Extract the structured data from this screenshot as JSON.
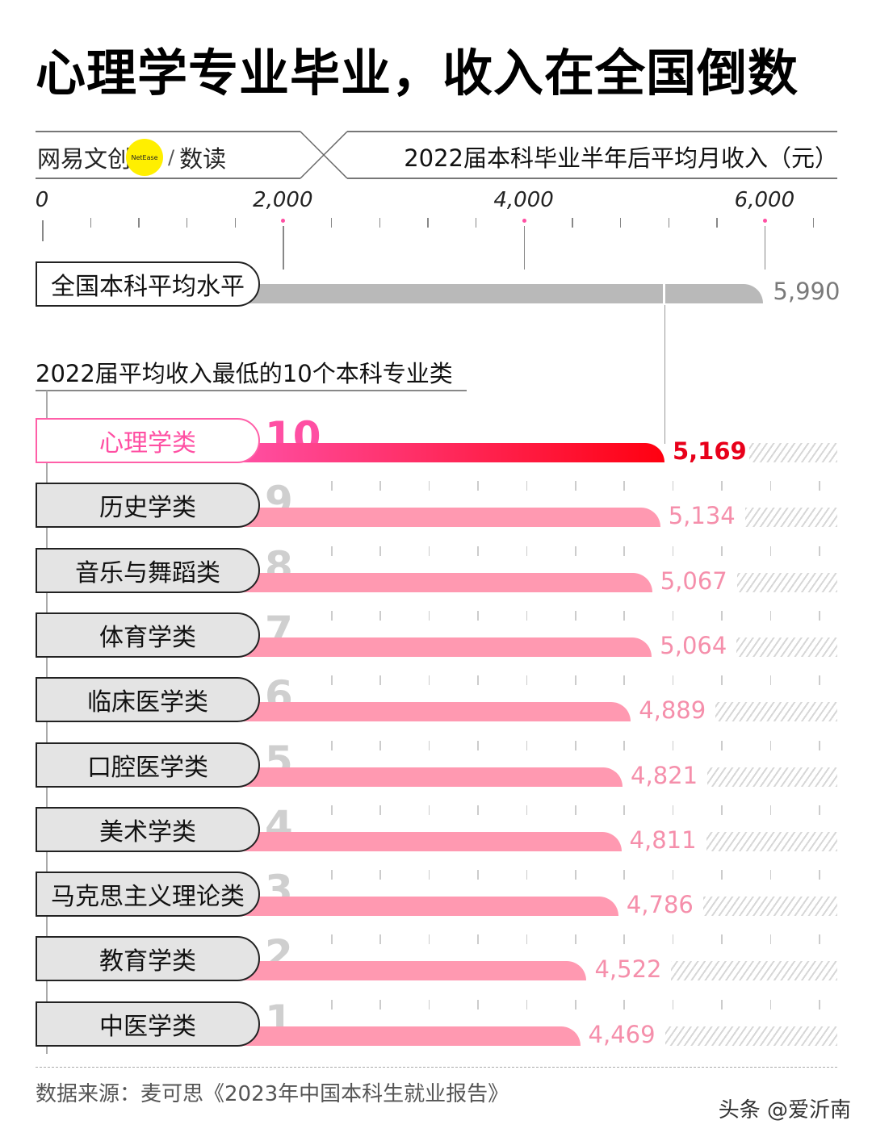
{
  "title": "心理学专业毕业，收入在全国倒数",
  "header": {
    "brand_cn": "网易文创",
    "brand_en": "NetEase",
    "brand_sep": "/",
    "brand_sub": "数读",
    "unit_title": "2022届本科毕业半年后平均月收入（元）"
  },
  "subtitle": "2022届平均收入最低的10个本科专业类",
  "footer": {
    "source": "数据来源：麦可思《2023年中国本科生就业报告》",
    "watermark": "头条 @爱沂南"
  },
  "colors": {
    "highlight_bar_start": "#ff4fa3",
    "highlight_bar_end": "#ff0010",
    "highlight_value": "#e8001a",
    "bar_pink": "#ff99b1",
    "value_pink": "#f58fab",
    "average_bar": "#b9b9b9",
    "average_value": "#7a7a7a",
    "rank_gray": "#cfcfcf",
    "brand_yellow": "#ffef00"
  },
  "chart_data": {
    "type": "bar",
    "orientation": "horizontal",
    "title": "心理学专业毕业，收入在全国倒数",
    "xlabel": "2022届本科毕业半年后平均月收入（元）",
    "xlim": [
      0,
      6500
    ],
    "xticks": [
      "0",
      "2,000",
      "4,000",
      "6,000"
    ],
    "reference": {
      "label": "全国本科平均水平",
      "value": 5990,
      "display": "5,990"
    },
    "group_title": "2022届平均收入最低的10个本科专业类",
    "categories": [
      "心理学类",
      "历史学类",
      "音乐与舞蹈类",
      "体育学类",
      "临床医学类",
      "口腔医学类",
      "美术学类",
      "马克思主义理论类",
      "教育学类",
      "中医学类"
    ],
    "ranks": [
      "10",
      "9",
      "8",
      "7",
      "6",
      "5",
      "4",
      "3",
      "2",
      "1"
    ],
    "values": [
      5169,
      5134,
      5067,
      5064,
      4889,
      4821,
      4811,
      4786,
      4522,
      4469
    ],
    "display_values": [
      "5,169",
      "5,134",
      "5,067",
      "5,064",
      "4,889",
      "4,821",
      "4,811",
      "4,786",
      "4,522",
      "4,469"
    ],
    "highlight": "心理学类",
    "source": "数据来源：麦可思《2023年中国本科生就业报告》"
  }
}
